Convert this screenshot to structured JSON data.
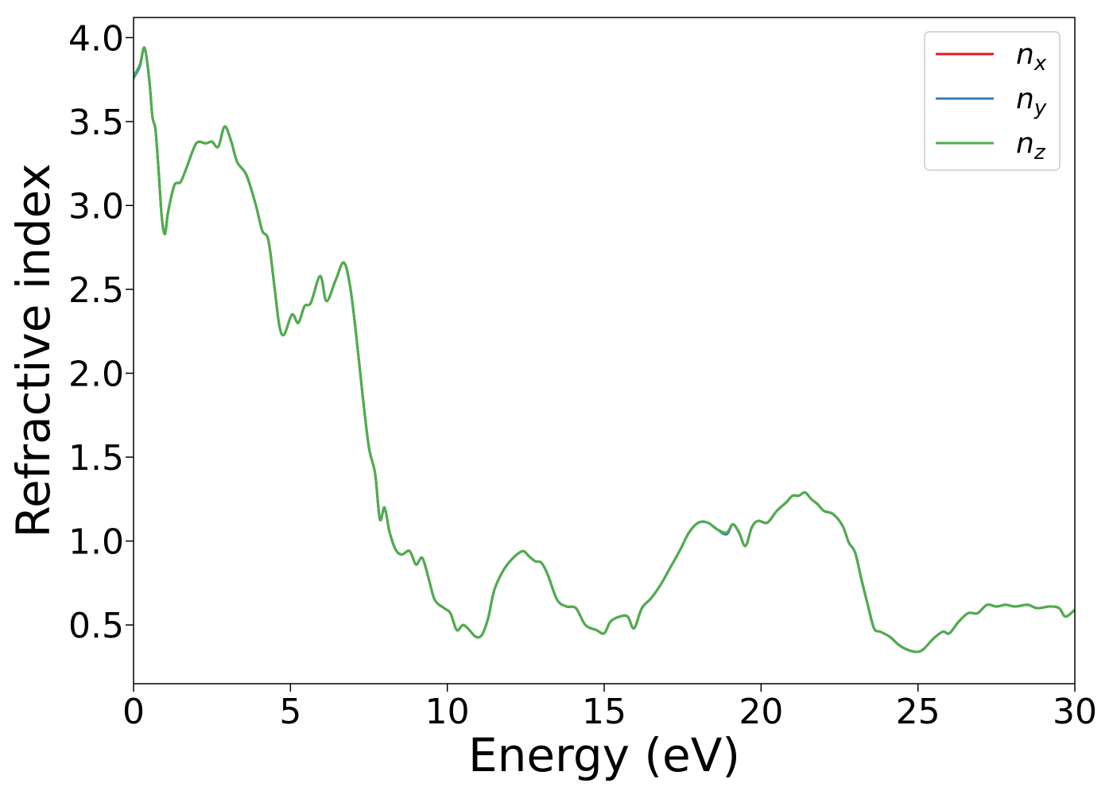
{
  "chart_data": {
    "type": "line",
    "xlabel": "Energy (eV)",
    "ylabel": "Refractive index",
    "xlim": [
      0,
      30
    ],
    "ylim": [
      0.15,
      4.12
    ],
    "xticks": [
      0,
      5,
      10,
      15,
      20,
      25,
      30
    ],
    "xtick_labels": [
      "0",
      "5",
      "10",
      "15",
      "20",
      "25",
      "30"
    ],
    "yticks": [
      0.5,
      1.0,
      1.5,
      2.0,
      2.5,
      3.0,
      3.5,
      4.0
    ],
    "ytick_labels": [
      "0.5",
      "1.0",
      "1.5",
      "2.0",
      "2.5",
      "3.0",
      "3.5",
      "4.0"
    ],
    "grid": false,
    "legend_position": "top-right",
    "x": [
      0,
      0.2,
      0.35,
      0.5,
      0.6,
      0.7,
      0.8,
      0.9,
      1.0,
      1.1,
      1.3,
      1.5,
      1.7,
      2.0,
      2.3,
      2.5,
      2.7,
      2.9,
      3.1,
      3.3,
      3.6,
      3.9,
      4.1,
      4.3,
      4.5,
      4.65,
      4.8,
      5.05,
      5.25,
      5.45,
      5.65,
      5.95,
      6.15,
      6.45,
      6.7,
      6.9,
      7.1,
      7.3,
      7.5,
      7.7,
      7.85,
      8.0,
      8.15,
      8.35,
      8.55,
      8.8,
      9.0,
      9.2,
      9.4,
      9.6,
      9.9,
      10.1,
      10.3,
      10.5,
      10.7,
      10.9,
      11.1,
      11.3,
      11.5,
      11.8,
      12.1,
      12.4,
      12.6,
      12.8,
      13.0,
      13.2,
      13.5,
      13.8,
      14.1,
      14.4,
      14.75,
      15.0,
      15.2,
      15.5,
      15.75,
      15.95,
      16.2,
      16.5,
      16.8,
      17.1,
      17.4,
      17.7,
      18.0,
      18.3,
      18.6,
      18.9,
      19.1,
      19.3,
      19.5,
      19.7,
      19.9,
      20.2,
      20.5,
      20.8,
      21.0,
      21.2,
      21.4,
      21.6,
      21.8,
      22.0,
      22.3,
      22.6,
      22.8,
      23.0,
      23.2,
      23.4,
      23.6,
      23.8,
      24.1,
      24.4,
      24.7,
      25.0,
      25.2,
      25.5,
      25.8,
      26.0,
      26.3,
      26.6,
      26.9,
      27.2,
      27.5,
      27.8,
      28.1,
      28.5,
      28.8,
      29.2,
      29.5,
      29.7,
      30.0
    ],
    "series": [
      {
        "name": "n",
        "subscript": "x",
        "color": "#e41a1c",
        "values": [
          3.76,
          3.83,
          3.94,
          3.75,
          3.53,
          3.45,
          3.2,
          2.93,
          2.83,
          2.96,
          3.12,
          3.14,
          3.23,
          3.37,
          3.37,
          3.38,
          3.35,
          3.47,
          3.39,
          3.26,
          3.18,
          3.0,
          2.85,
          2.79,
          2.5,
          2.28,
          2.23,
          2.35,
          2.3,
          2.4,
          2.42,
          2.58,
          2.43,
          2.56,
          2.66,
          2.52,
          2.22,
          1.87,
          1.56,
          1.4,
          1.13,
          1.2,
          1.06,
          0.95,
          0.92,
          0.94,
          0.86,
          0.9,
          0.78,
          0.65,
          0.6,
          0.57,
          0.47,
          0.5,
          0.47,
          0.43,
          0.44,
          0.54,
          0.71,
          0.83,
          0.9,
          0.94,
          0.91,
          0.88,
          0.87,
          0.8,
          0.65,
          0.61,
          0.6,
          0.5,
          0.47,
          0.45,
          0.52,
          0.55,
          0.55,
          0.48,
          0.6,
          0.66,
          0.74,
          0.84,
          0.94,
          1.05,
          1.11,
          1.11,
          1.07,
          1.05,
          1.1,
          1.05,
          0.97,
          1.08,
          1.12,
          1.11,
          1.18,
          1.23,
          1.27,
          1.27,
          1.29,
          1.25,
          1.22,
          1.18,
          1.16,
          1.09,
          0.99,
          0.93,
          0.77,
          0.62,
          0.48,
          0.46,
          0.43,
          0.38,
          0.35,
          0.34,
          0.36,
          0.42,
          0.46,
          0.45,
          0.52,
          0.57,
          0.57,
          0.62,
          0.61,
          0.62,
          0.61,
          0.62,
          0.6,
          0.61,
          0.6,
          0.55,
          0.59
        ]
      },
      {
        "name": "n",
        "subscript": "y",
        "color": "#377eb8",
        "values": [
          3.76,
          3.83,
          3.94,
          3.75,
          3.53,
          3.45,
          3.2,
          2.93,
          2.83,
          2.96,
          3.12,
          3.14,
          3.23,
          3.37,
          3.37,
          3.38,
          3.35,
          3.47,
          3.39,
          3.26,
          3.18,
          3.0,
          2.85,
          2.79,
          2.5,
          2.28,
          2.23,
          2.35,
          2.3,
          2.4,
          2.42,
          2.58,
          2.43,
          2.56,
          2.66,
          2.52,
          2.22,
          1.87,
          1.56,
          1.4,
          1.13,
          1.2,
          1.06,
          0.95,
          0.92,
          0.94,
          0.86,
          0.9,
          0.78,
          0.65,
          0.6,
          0.57,
          0.47,
          0.5,
          0.47,
          0.43,
          0.44,
          0.54,
          0.71,
          0.83,
          0.9,
          0.94,
          0.91,
          0.88,
          0.87,
          0.8,
          0.65,
          0.61,
          0.6,
          0.5,
          0.47,
          0.45,
          0.52,
          0.55,
          0.55,
          0.48,
          0.6,
          0.66,
          0.74,
          0.84,
          0.94,
          1.05,
          1.11,
          1.11,
          1.07,
          1.04,
          1.1,
          1.05,
          0.97,
          1.08,
          1.12,
          1.11,
          1.18,
          1.23,
          1.27,
          1.27,
          1.29,
          1.25,
          1.22,
          1.18,
          1.16,
          1.09,
          0.99,
          0.93,
          0.77,
          0.62,
          0.48,
          0.46,
          0.43,
          0.38,
          0.35,
          0.34,
          0.36,
          0.42,
          0.46,
          0.45,
          0.52,
          0.57,
          0.57,
          0.62,
          0.61,
          0.62,
          0.61,
          0.62,
          0.6,
          0.61,
          0.6,
          0.55,
          0.59
        ]
      },
      {
        "name": "n",
        "subscript": "z",
        "color": "#4daf4a",
        "values": [
          3.77,
          3.84,
          3.94,
          3.75,
          3.53,
          3.45,
          3.2,
          2.93,
          2.83,
          2.96,
          3.12,
          3.14,
          3.23,
          3.37,
          3.37,
          3.38,
          3.35,
          3.47,
          3.39,
          3.26,
          3.18,
          3.0,
          2.85,
          2.79,
          2.5,
          2.28,
          2.23,
          2.35,
          2.3,
          2.4,
          2.42,
          2.58,
          2.43,
          2.56,
          2.66,
          2.52,
          2.22,
          1.87,
          1.56,
          1.4,
          1.13,
          1.2,
          1.06,
          0.95,
          0.92,
          0.94,
          0.86,
          0.9,
          0.78,
          0.65,
          0.6,
          0.57,
          0.47,
          0.5,
          0.47,
          0.43,
          0.44,
          0.54,
          0.71,
          0.83,
          0.9,
          0.94,
          0.91,
          0.88,
          0.87,
          0.8,
          0.65,
          0.61,
          0.6,
          0.5,
          0.47,
          0.45,
          0.52,
          0.55,
          0.55,
          0.48,
          0.6,
          0.66,
          0.74,
          0.84,
          0.94,
          1.05,
          1.11,
          1.11,
          1.07,
          1.05,
          1.1,
          1.05,
          0.97,
          1.08,
          1.12,
          1.11,
          1.18,
          1.23,
          1.27,
          1.27,
          1.29,
          1.25,
          1.22,
          1.18,
          1.16,
          1.09,
          0.99,
          0.93,
          0.77,
          0.62,
          0.48,
          0.46,
          0.43,
          0.38,
          0.35,
          0.34,
          0.36,
          0.42,
          0.46,
          0.45,
          0.52,
          0.57,
          0.57,
          0.62,
          0.61,
          0.62,
          0.61,
          0.62,
          0.6,
          0.61,
          0.6,
          0.55,
          0.59
        ]
      }
    ]
  }
}
